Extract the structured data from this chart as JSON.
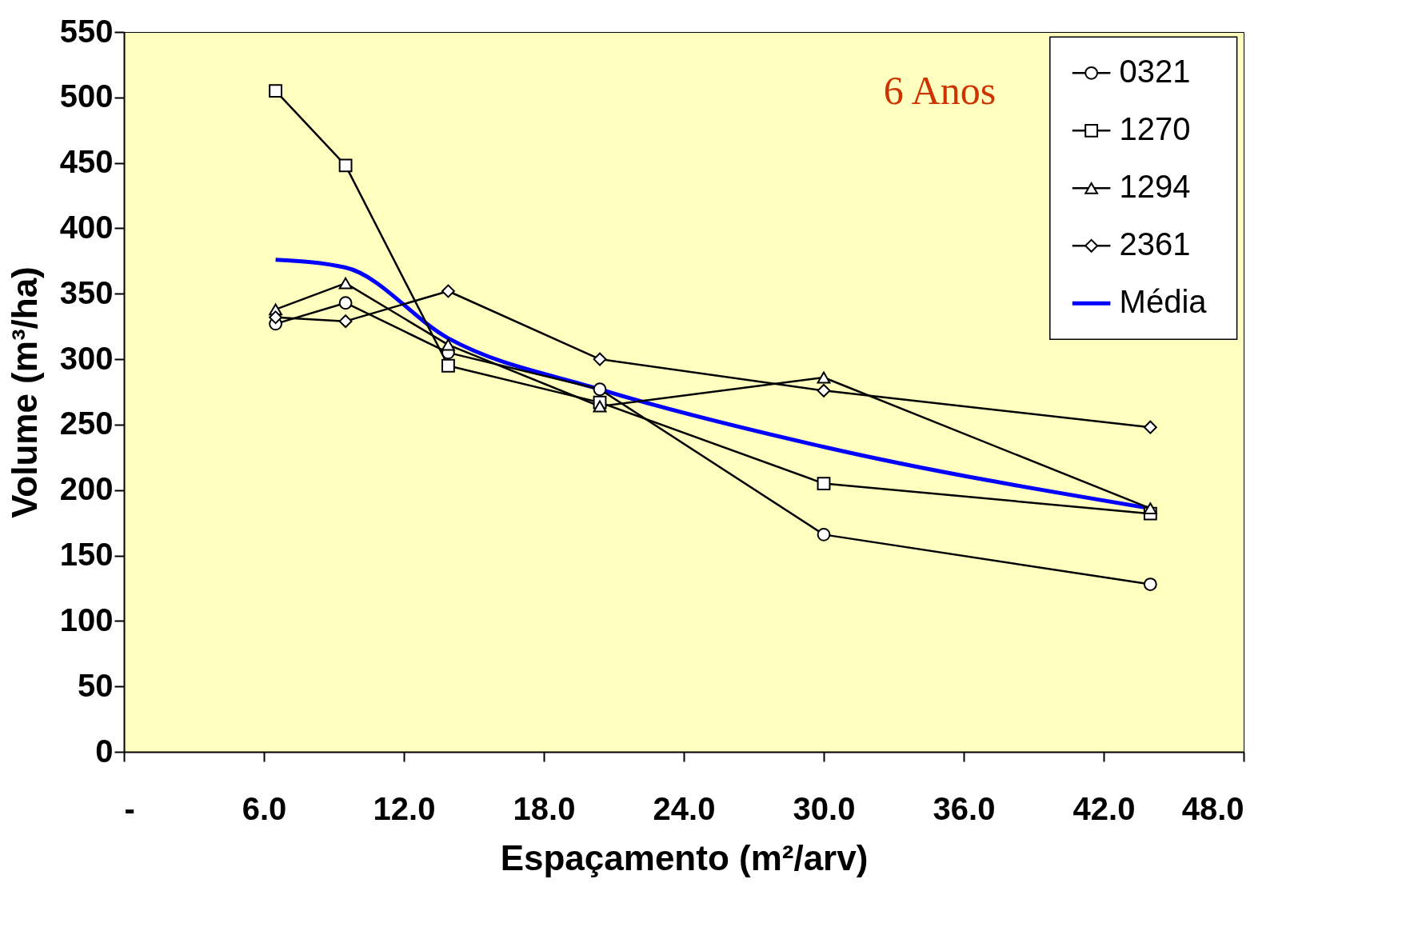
{
  "chart_data": {
    "type": "line",
    "xlabel": "Espaçamento (m²/arv)",
    "ylabel": "Volume (m³/ha)",
    "annotations": [
      "6 Anos"
    ],
    "x": [
      6.5,
      9.5,
      13.9,
      20.4,
      30.0,
      44.0
    ],
    "series": [
      {
        "name": "0321",
        "color": "#000000",
        "marker": "circle",
        "values": [
          327,
          343,
          305,
          277,
          166,
          128
        ]
      },
      {
        "name": "1270",
        "color": "#000000",
        "marker": "square",
        "values": [
          505,
          448,
          295,
          267,
          205,
          182
        ]
      },
      {
        "name": "1294",
        "color": "#000000",
        "marker": "triangle",
        "values": [
          338,
          358,
          311,
          264,
          286,
          186
        ]
      },
      {
        "name": "2361",
        "color": "#000000",
        "marker": "diamond",
        "values": [
          332,
          329,
          352,
          300,
          276,
          248
        ]
      },
      {
        "name": "Média",
        "color": "#0000ff",
        "marker": "none",
        "values": [
          376,
          370,
          316,
          277,
          233,
          186
        ]
      }
    ],
    "xlim": [
      0,
      48
    ],
    "xticks": [
      {
        "value": 0,
        "label": "-"
      },
      {
        "value": 6,
        "label": "6.0"
      },
      {
        "value": 12,
        "label": "12.0"
      },
      {
        "value": 18,
        "label": "18.0"
      },
      {
        "value": 24,
        "label": "24.0"
      },
      {
        "value": 30,
        "label": "30.0"
      },
      {
        "value": 36,
        "label": "36.0"
      },
      {
        "value": 42,
        "label": "42.0"
      },
      {
        "value": 48,
        "label": "48.0"
      }
    ],
    "ylim": [
      0,
      550
    ],
    "yticks": [
      0,
      50,
      100,
      150,
      200,
      250,
      300,
      350,
      400,
      450,
      500,
      550
    ],
    "grid": false,
    "legend": "top right"
  }
}
